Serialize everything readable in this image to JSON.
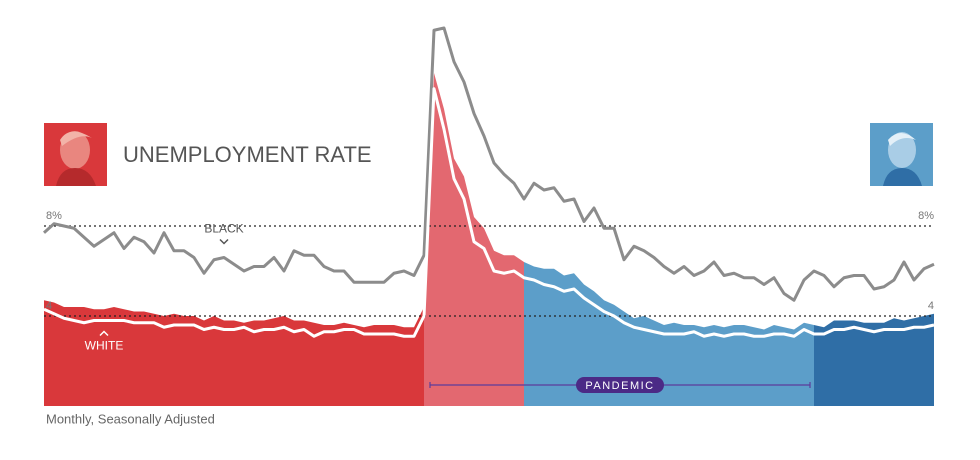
{
  "chart_data": {
    "type": "area",
    "title": "UNEMPLOYMENT RATE",
    "note": "Monthly, Seasonally Adjusted",
    "ylim": [
      0,
      17.2
    ],
    "yticks": [
      {
        "value": 8,
        "label": "8%"
      },
      4
    ],
    "grid": true,
    "area": {
      "values": [
        4.7,
        4.6,
        4.4,
        4.4,
        4.4,
        4.3,
        4.3,
        4.4,
        4.3,
        4.2,
        4.2,
        4.1,
        4.0,
        4.1,
        4.0,
        4.0,
        3.8,
        4.0,
        3.8,
        3.8,
        3.7,
        3.8,
        3.8,
        3.9,
        4.0,
        3.8,
        3.8,
        3.7,
        3.6,
        3.6,
        3.7,
        3.6,
        3.5,
        3.6,
        3.6,
        3.6,
        3.5,
        3.5,
        4.4,
        14.8,
        13.2,
        11.0,
        10.2,
        8.4,
        7.9,
        6.9,
        6.7,
        6.7,
        6.4,
        6.2,
        6.1,
        6.1,
        5.8,
        5.9,
        5.4,
        5.1,
        4.7,
        4.5,
        4.2,
        3.9,
        4.0,
        3.8,
        3.6,
        3.7,
        3.6,
        3.6,
        3.5,
        3.6,
        3.5,
        3.6,
        3.6,
        3.5,
        3.4,
        3.6,
        3.5,
        3.4,
        3.7,
        3.6,
        3.5,
        3.8,
        3.8,
        3.8,
        3.7,
        3.7,
        3.7,
        3.9,
        3.8,
        3.9,
        4.0,
        4.1
      ],
      "segments": [
        {
          "start": 0,
          "end": 38,
          "color": "#d9383b"
        },
        {
          "start": 38,
          "end": 48,
          "color": "#e36870"
        },
        {
          "start": 48,
          "end": 77,
          "color": "#5c9ec9"
        },
        {
          "start": 77,
          "end": 89,
          "color": "#2f6ea6"
        }
      ]
    },
    "series": [
      {
        "name": "BLACK",
        "color": "#8c8c8c",
        "values": [
          7.7,
          8.1,
          8.0,
          7.9,
          7.5,
          7.1,
          7.4,
          7.7,
          7.0,
          7.5,
          7.3,
          6.8,
          7.7,
          6.9,
          6.9,
          6.6,
          5.9,
          6.5,
          6.6,
          6.3,
          6.0,
          6.2,
          6.2,
          6.6,
          6.0,
          6.9,
          6.7,
          6.7,
          6.2,
          6.0,
          6.0,
          5.5,
          5.5,
          5.5,
          5.5,
          5.9,
          6.0,
          5.8,
          6.7,
          16.7,
          16.8,
          15.3,
          14.4,
          13.0,
          12.0,
          10.8,
          10.3,
          9.9,
          9.2,
          9.9,
          9.6,
          9.7,
          9.1,
          9.2,
          8.2,
          8.8,
          7.9,
          7.9,
          6.5,
          7.1,
          6.9,
          6.6,
          6.2,
          5.9,
          6.2,
          5.8,
          6.0,
          6.4,
          5.8,
          5.9,
          5.7,
          5.7,
          5.4,
          5.7,
          5.0,
          4.7,
          5.6,
          6.0,
          5.8,
          5.3,
          5.7,
          5.8,
          5.8,
          5.2,
          5.3,
          5.6,
          6.4,
          5.6,
          6.1,
          6.3
        ]
      },
      {
        "name": "WHITE",
        "color": "#ffffff",
        "values": [
          4.3,
          4.1,
          3.9,
          3.8,
          3.7,
          3.8,
          3.8,
          3.8,
          3.8,
          3.7,
          3.7,
          3.7,
          3.5,
          3.6,
          3.6,
          3.6,
          3.4,
          3.5,
          3.4,
          3.4,
          3.5,
          3.3,
          3.4,
          3.4,
          3.5,
          3.3,
          3.4,
          3.1,
          3.3,
          3.3,
          3.4,
          3.4,
          3.2,
          3.2,
          3.2,
          3.2,
          3.1,
          3.1,
          4.0,
          14.1,
          12.3,
          10.1,
          9.2,
          7.3,
          7.0,
          6.0,
          5.9,
          6.0,
          5.7,
          5.6,
          5.4,
          5.3,
          5.1,
          5.2,
          4.8,
          4.5,
          4.2,
          4.0,
          3.7,
          3.5,
          3.4,
          3.3,
          3.2,
          3.2,
          3.2,
          3.3,
          3.1,
          3.2,
          3.1,
          3.2,
          3.2,
          3.1,
          3.1,
          3.2,
          3.2,
          3.1,
          3.4,
          3.2,
          3.2,
          3.4,
          3.4,
          3.5,
          3.4,
          3.3,
          3.4,
          3.4,
          3.4,
          3.5,
          3.5,
          3.6
        ]
      }
    ],
    "pandemic": {
      "label": "PANDEMIC",
      "start": 38,
      "end": 77
    }
  }
}
